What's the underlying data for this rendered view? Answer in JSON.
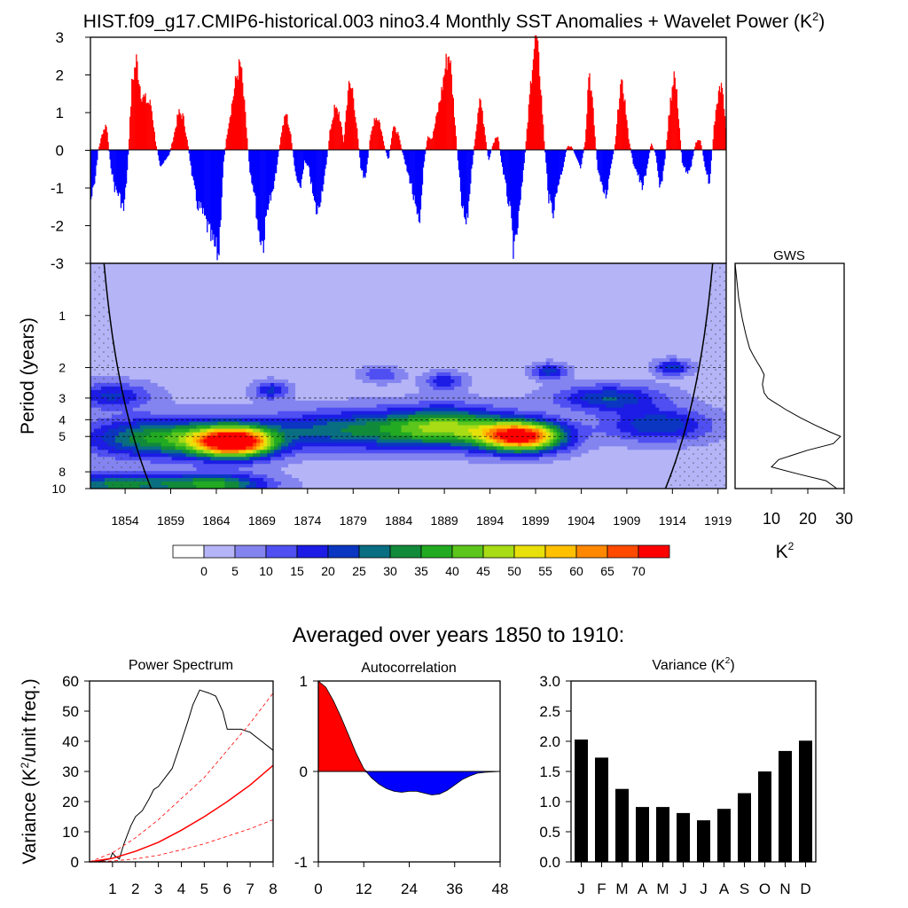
{
  "title": "HIST.f09_g17.CMIP6-historical.003 nino3.4 Monthly SST Anomalies + Wavelet Power (K",
  "title_sup": "2",
  "title_close": ")",
  "subtitle": "Averaged over years 1850 to 1910:",
  "colors": {
    "positive": "#ff0000",
    "negative": "#0000ff",
    "bar": "#000000",
    "significance": "#ff0000"
  },
  "chart_data": [
    {
      "type": "area",
      "name": "anomaly",
      "ylim": [
        -3,
        3
      ],
      "yticks": [
        3,
        2,
        1,
        0,
        -1,
        -2,
        -3
      ],
      "xlim": [
        1850.2,
        1919.9
      ],
      "control_points": [
        [
          1850.2,
          -1.3
        ],
        [
          1850.6,
          -0.9
        ],
        [
          1851.0,
          0.0
        ],
        [
          1851.5,
          0.5
        ],
        [
          1851.9,
          0.7
        ],
        [
          1852.3,
          -0.3
        ],
        [
          1852.8,
          -1.0
        ],
        [
          1853.3,
          -1.2
        ],
        [
          1853.8,
          -1.6
        ],
        [
          1854.2,
          -0.5
        ],
        [
          1854.7,
          1.8
        ],
        [
          1855.2,
          2.4
        ],
        [
          1855.7,
          1.5
        ],
        [
          1856.3,
          1.3
        ],
        [
          1856.8,
          1.2
        ],
        [
          1857.3,
          0.2
        ],
        [
          1857.8,
          -0.4
        ],
        [
          1858.3,
          -0.3
        ],
        [
          1858.8,
          -0.1
        ],
        [
          1859.3,
          0.4
        ],
        [
          1859.8,
          1.0
        ],
        [
          1860.3,
          0.9
        ],
        [
          1860.8,
          0.2
        ],
        [
          1861.3,
          -0.7
        ],
        [
          1861.8,
          -1.4
        ],
        [
          1862.3,
          -1.6
        ],
        [
          1862.8,
          -1.9
        ],
        [
          1863.3,
          -2.3
        ],
        [
          1863.8,
          -2.6
        ],
        [
          1864.2,
          -2.8
        ],
        [
          1864.7,
          -0.4
        ],
        [
          1865.2,
          0.6
        ],
        [
          1865.7,
          1.3
        ],
        [
          1866.2,
          2.0
        ],
        [
          1866.6,
          2.3
        ],
        [
          1867.1,
          1.0
        ],
        [
          1867.6,
          -0.5
        ],
        [
          1868.1,
          -1.1
        ],
        [
          1868.6,
          -2.2
        ],
        [
          1869.1,
          -2.5
        ],
        [
          1869.6,
          -1.4
        ],
        [
          1870.1,
          -1.2
        ],
        [
          1870.6,
          -0.4
        ],
        [
          1871.1,
          0.5
        ],
        [
          1871.6,
          1.0
        ],
        [
          1872.1,
          0.4
        ],
        [
          1872.6,
          -0.6
        ],
        [
          1873.1,
          -1.1
        ],
        [
          1873.6,
          -0.3
        ],
        [
          1874.1,
          -0.5
        ],
        [
          1874.6,
          -1.3
        ],
        [
          1875.0,
          -1.7
        ],
        [
          1875.5,
          -1.1
        ],
        [
          1876.0,
          -0.4
        ],
        [
          1876.4,
          0.5
        ],
        [
          1876.9,
          1.1
        ],
        [
          1877.4,
          1.0
        ],
        [
          1877.9,
          0.2
        ],
        [
          1878.4,
          1.7
        ],
        [
          1878.9,
          1.6
        ],
        [
          1879.3,
          0.7
        ],
        [
          1879.8,
          -0.5
        ],
        [
          1880.3,
          -0.8
        ],
        [
          1880.8,
          0.3
        ],
        [
          1881.3,
          0.9
        ],
        [
          1881.8,
          0.8
        ],
        [
          1882.3,
          0.2
        ],
        [
          1882.8,
          -0.3
        ],
        [
          1883.3,
          0.6
        ],
        [
          1883.8,
          0.5
        ],
        [
          1884.3,
          0.0
        ],
        [
          1884.8,
          -0.5
        ],
        [
          1885.3,
          -0.9
        ],
        [
          1885.8,
          -1.6
        ],
        [
          1886.2,
          -2.1
        ],
        [
          1886.6,
          -0.6
        ],
        [
          1887.1,
          0.4
        ],
        [
          1887.6,
          0.3
        ],
        [
          1888.1,
          0.9
        ],
        [
          1888.6,
          1.5
        ],
        [
          1889.1,
          2.3
        ],
        [
          1889.5,
          2.6
        ],
        [
          1889.9,
          1.4
        ],
        [
          1890.4,
          -0.2
        ],
        [
          1890.9,
          -1.6
        ],
        [
          1891.4,
          -2.0
        ],
        [
          1891.9,
          -0.6
        ],
        [
          1892.4,
          0.5
        ],
        [
          1892.9,
          1.4
        ],
        [
          1893.3,
          0.6
        ],
        [
          1893.8,
          -0.3
        ],
        [
          1894.3,
          0.2
        ],
        [
          1894.8,
          0.4
        ],
        [
          1895.2,
          -0.3
        ],
        [
          1895.7,
          -1.0
        ],
        [
          1896.2,
          -1.7
        ],
        [
          1896.6,
          -2.8
        ],
        [
          1897.1,
          -1.8
        ],
        [
          1897.6,
          -0.6
        ],
        [
          1898.1,
          0.8
        ],
        [
          1898.6,
          2.4
        ],
        [
          1899.0,
          3.0
        ],
        [
          1899.4,
          2.1
        ],
        [
          1899.9,
          0.2
        ],
        [
          1900.4,
          -1.3
        ],
        [
          1900.9,
          -1.6
        ],
        [
          1901.4,
          -0.9
        ],
        [
          1901.9,
          -0.5
        ],
        [
          1902.4,
          0.1
        ],
        [
          1902.9,
          0.1
        ],
        [
          1903.4,
          -0.2
        ],
        [
          1903.9,
          -0.5
        ],
        [
          1904.4,
          0.3
        ],
        [
          1904.8,
          2.2
        ],
        [
          1905.2,
          1.2
        ],
        [
          1905.7,
          -0.4
        ],
        [
          1906.2,
          -1.0
        ],
        [
          1906.7,
          -1.2
        ],
        [
          1907.2,
          -0.4
        ],
        [
          1907.7,
          0.2
        ],
        [
          1908.2,
          1.7
        ],
        [
          1908.6,
          1.6
        ],
        [
          1909.1,
          0.4
        ],
        [
          1909.6,
          -0.3
        ],
        [
          1910.1,
          -0.6
        ],
        [
          1910.6,
          -1.0
        ],
        [
          1911.1,
          -0.6
        ],
        [
          1911.6,
          0.2
        ],
        [
          1912.1,
          -0.1
        ],
        [
          1912.6,
          -1.1
        ],
        [
          1913.1,
          -0.3
        ],
        [
          1913.6,
          1.0
        ],
        [
          1914.1,
          2.1
        ],
        [
          1914.5,
          1.3
        ],
        [
          1915.0,
          -0.3
        ],
        [
          1915.5,
          -0.6
        ],
        [
          1916.0,
          -0.4
        ],
        [
          1916.5,
          0.2
        ],
        [
          1917.0,
          0.3
        ],
        [
          1917.5,
          -0.4
        ],
        [
          1918.0,
          -0.9
        ],
        [
          1918.5,
          0.6
        ],
        [
          1918.9,
          1.4
        ],
        [
          1919.4,
          1.7
        ],
        [
          1919.9,
          0.4
        ]
      ]
    },
    {
      "type": "heatmap",
      "name": "wavelet_power",
      "ylabel": "Period (years)",
      "y_scale": "log",
      "ylim": [
        0.5,
        10
      ],
      "yticks": [
        1,
        2,
        3,
        4,
        5,
        8,
        10
      ],
      "xlim": [
        1850.2,
        1919.9
      ],
      "xticks": [
        1854,
        1859,
        1864,
        1869,
        1874,
        1879,
        1884,
        1889,
        1894,
        1899,
        1904,
        1909,
        1914,
        1919
      ],
      "levels": [
        0,
        5,
        10,
        15,
        20,
        25,
        30,
        35,
        40,
        45,
        50,
        55,
        60,
        65,
        70
      ],
      "palette": [
        "#ffffff",
        "#b4b4f7",
        "#8484f0",
        "#4f4ff2",
        "#1c1ce6",
        "#0a36c2",
        "#0a6e82",
        "#118a3a",
        "#22aa22",
        "#5cc61c",
        "#a8dc14",
        "#e8e00a",
        "#ffc000",
        "#ff8800",
        "#ff4a00",
        "#ff0000"
      ],
      "blobs": [
        [
          1866.0,
          5.4,
          3.0,
          0.14,
          72
        ],
        [
          1897.5,
          5.0,
          3.2,
          0.14,
          72
        ],
        [
          1889.5,
          4.4,
          4.5,
          0.18,
          35
        ],
        [
          1879.0,
          4.6,
          7.0,
          0.18,
          26
        ],
        [
          1858.5,
          5.1,
          6.0,
          0.18,
          34
        ],
        [
          1870.0,
          2.7,
          1.3,
          0.08,
          18
        ],
        [
          1882.0,
          2.2,
          1.5,
          0.07,
          12
        ],
        [
          1889.0,
          2.4,
          1.5,
          0.08,
          16
        ],
        [
          1900.5,
          2.1,
          1.3,
          0.07,
          20
        ],
        [
          1914.0,
          2.0,
          1.3,
          0.07,
          20
        ],
        [
          1852.5,
          2.9,
          3.0,
          0.12,
          18
        ],
        [
          1907.0,
          3.0,
          4.0,
          0.12,
          22
        ],
        [
          1912.5,
          4.3,
          4.0,
          0.15,
          22
        ],
        [
          1853.0,
          9.5,
          5.0,
          0.1,
          28
        ],
        [
          1864.0,
          9.5,
          4.0,
          0.1,
          32
        ]
      ],
      "coi_xlim": [
        1850.2,
        1919.9
      ],
      "gridlines": [
        2,
        3,
        4,
        5
      ]
    },
    {
      "type": "line",
      "name": "GWS",
      "title": "GWS",
      "xlabel": "K",
      "xlabel_sup": "2",
      "xlim": [
        0,
        30
      ],
      "xticks": [
        10,
        20,
        30
      ],
      "points": [
        [
          0,
          0.5
        ],
        [
          1,
          0.8
        ],
        [
          2,
          1.05
        ],
        [
          3,
          1.3
        ],
        [
          4,
          1.55
        ],
        [
          5,
          1.7
        ],
        [
          6,
          1.85
        ],
        [
          7,
          2.0
        ],
        [
          8,
          2.2
        ],
        [
          7.5,
          2.5
        ],
        [
          8,
          2.8
        ],
        [
          9,
          3.0
        ],
        [
          10,
          3.1
        ],
        [
          14,
          3.5
        ],
        [
          18,
          3.9
        ],
        [
          22,
          4.3
        ],
        [
          26,
          4.7
        ],
        [
          29,
          5.0
        ],
        [
          27,
          5.5
        ],
        [
          20,
          6.0
        ],
        [
          12,
          6.8
        ],
        [
          10,
          7.5
        ],
        [
          18,
          8.3
        ],
        [
          25,
          9.0
        ],
        [
          28,
          10
        ]
      ]
    },
    {
      "type": "line",
      "name": "power_spectrum",
      "title": "Power Spectrum",
      "ylabel": "Variance (K",
      "ylabel_sup": "2",
      "ylabel_close": "/unit freq.)",
      "xlim": [
        0,
        8
      ],
      "ylim": [
        0,
        60
      ],
      "xticks": [
        1,
        2,
        3,
        4,
        5,
        6,
        7,
        8
      ],
      "yticks": [
        0,
        10,
        20,
        30,
        40,
        50,
        60
      ],
      "series": [
        {
          "values": [
            [
              0,
              0
            ],
            [
              0.5,
              0.3
            ],
            [
              0.9,
              1
            ],
            [
              1.0,
              3
            ],
            [
              1.1,
              2
            ],
            [
              1.3,
              1
            ],
            [
              1.5,
              6
            ],
            [
              1.8,
              12
            ],
            [
              2.0,
              15
            ],
            [
              2.3,
              17
            ],
            [
              2.6,
              21
            ],
            [
              2.8,
              24
            ],
            [
              3.0,
              25
            ],
            [
              3.3,
              28
            ],
            [
              3.6,
              31
            ],
            [
              4.0,
              40
            ],
            [
              4.3,
              47
            ],
            [
              4.5,
              52
            ],
            [
              4.8,
              57
            ],
            [
              5.2,
              56
            ],
            [
              5.5,
              55
            ],
            [
              5.8,
              50
            ],
            [
              6.0,
              44
            ],
            [
              6.3,
              44
            ],
            [
              6.6,
              44
            ],
            [
              7.0,
              43
            ],
            [
              7.5,
              40
            ],
            [
              8.0,
              37
            ]
          ]
        },
        {
          "values": [
            [
              0,
              0
            ],
            [
              1,
              1.2
            ],
            [
              2,
              3.5
            ],
            [
              3,
              6.5
            ],
            [
              4,
              10.5
            ],
            [
              5,
              15
            ],
            [
              6,
              20
            ],
            [
              7,
              25.5
            ],
            [
              8,
              32
            ]
          ]
        },
        {
          "values": [
            [
              0,
              0
            ],
            [
              1,
              3
            ],
            [
              2,
              8
            ],
            [
              3,
              14
            ],
            [
              4,
              21
            ],
            [
              5,
              28
            ],
            [
              6,
              37
            ],
            [
              7,
              46
            ],
            [
              8,
              56
            ]
          ]
        },
        {
          "values": [
            [
              0,
              0
            ],
            [
              1,
              0.3
            ],
            [
              2,
              1
            ],
            [
              3,
              2.2
            ],
            [
              4,
              4
            ],
            [
              5,
              6
            ],
            [
              6,
              8.5
            ],
            [
              7,
              11
            ],
            [
              8,
              14
            ]
          ]
        }
      ]
    },
    {
      "type": "area",
      "name": "autocorrelation",
      "title": "Autocorrelation",
      "xlim": [
        0,
        48
      ],
      "ylim": [
        -1,
        1
      ],
      "xticks": [
        0,
        12,
        24,
        36,
        48
      ],
      "yticks": [
        1,
        0,
        -1
      ],
      "points": [
        [
          0,
          1
        ],
        [
          2,
          0.93
        ],
        [
          4,
          0.78
        ],
        [
          6,
          0.6
        ],
        [
          8,
          0.4
        ],
        [
          10,
          0.2
        ],
        [
          12,
          0.03
        ],
        [
          13,
          -0.02
        ],
        [
          14,
          -0.07
        ],
        [
          16,
          -0.14
        ],
        [
          18,
          -0.19
        ],
        [
          20,
          -0.22
        ],
        [
          22,
          -0.23
        ],
        [
          24,
          -0.22
        ],
        [
          26,
          -0.22
        ],
        [
          28,
          -0.24
        ],
        [
          30,
          -0.26
        ],
        [
          32,
          -0.25
        ],
        [
          34,
          -0.21
        ],
        [
          36,
          -0.15
        ],
        [
          38,
          -0.09
        ],
        [
          40,
          -0.05
        ],
        [
          42,
          -0.02
        ],
        [
          44,
          -0.01
        ],
        [
          48,
          0
        ]
      ]
    },
    {
      "type": "bar",
      "name": "monthly_variance",
      "title": "Variance (K",
      "title_sup": "2",
      "title_close": ")",
      "categories": [
        "J",
        "F",
        "M",
        "A",
        "M",
        "J",
        "J",
        "A",
        "S",
        "O",
        "N",
        "D"
      ],
      "values": [
        2.03,
        1.73,
        1.21,
        0.91,
        0.91,
        0.81,
        0.69,
        0.88,
        1.14,
        1.5,
        1.84,
        2.01
      ],
      "ylim": [
        0,
        3
      ],
      "yticks": [
        "0.0",
        "0.5",
        "1.0",
        "1.5",
        "2.0",
        "2.5",
        "3.0"
      ]
    }
  ]
}
